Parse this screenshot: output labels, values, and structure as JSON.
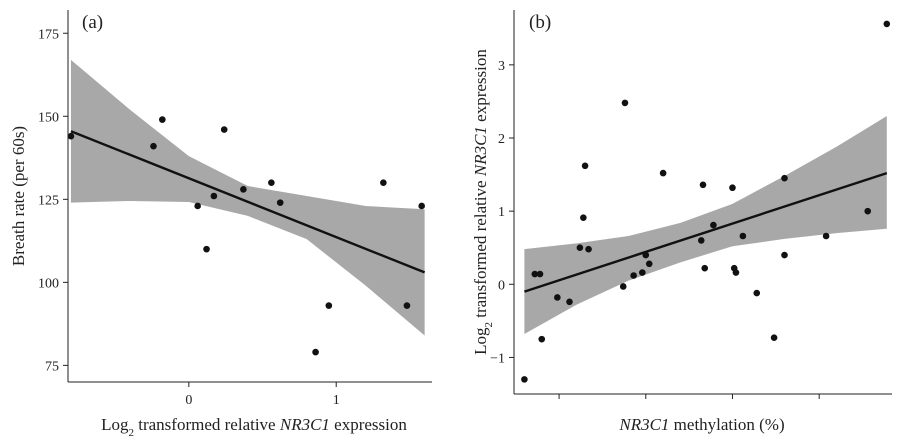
{
  "chart_data": [
    {
      "type": "scatter",
      "panel_label": "(a)",
      "xlabel_parts": [
        "Log",
        "2",
        " transformed relative ",
        "NR3C1",
        " expression"
      ],
      "ylabel": "Breath rate (per 60s)",
      "xlim": [
        -0.82,
        1.65
      ],
      "ylim": [
        70,
        182
      ],
      "x_ticks": [
        0,
        1
      ],
      "x_tick_labels": [
        "0",
        "1"
      ],
      "y_ticks": [
        75,
        100,
        125,
        150,
        175
      ],
      "y_tick_labels": [
        "75",
        "100",
        "125",
        "150",
        "175"
      ],
      "grid": false,
      "points": [
        {
          "x": -0.8,
          "y": 144
        },
        {
          "x": -0.24,
          "y": 141
        },
        {
          "x": -0.18,
          "y": 149
        },
        {
          "x": 0.06,
          "y": 123
        },
        {
          "x": 0.12,
          "y": 110
        },
        {
          "x": 0.17,
          "y": 126
        },
        {
          "x": 0.24,
          "y": 146
        },
        {
          "x": 0.37,
          "y": 128
        },
        {
          "x": 0.56,
          "y": 130
        },
        {
          "x": 0.62,
          "y": 124
        },
        {
          "x": 0.86,
          "y": 79
        },
        {
          "x": 0.95,
          "y": 93
        },
        {
          "x": 1.32,
          "y": 130
        },
        {
          "x": 1.48,
          "y": 93
        },
        {
          "x": 1.58,
          "y": 123
        }
      ],
      "fit_line": {
        "x": [
          -0.8,
          1.6
        ],
        "y": [
          145.5,
          103
        ]
      },
      "ci_band": {
        "x": [
          -0.8,
          -0.4,
          0.0,
          0.4,
          0.8,
          1.2,
          1.6
        ],
        "lower": [
          124,
          124.5,
          124.2,
          120,
          113,
          99,
          84
        ],
        "upper": [
          167,
          152,
          138,
          129,
          126,
          123,
          122
        ]
      },
      "colors": {
        "points": "#111111",
        "line": "#111111",
        "band": "#a8a8a8"
      }
    },
    {
      "type": "scatter",
      "panel_label": "(b)",
      "xlabel_parts": [
        "NR3C1",
        " methylation (%)"
      ],
      "ylabel_parts": [
        "Log",
        "2",
        " transformed relative ",
        "NR3C1",
        " expression"
      ],
      "xlim": [
        -0.3,
        10.6
      ],
      "ylim": [
        -1.5,
        3.75
      ],
      "x_ticks": [
        1,
        3.5,
        6,
        8.5
      ],
      "x_tick_labels": [
        "",
        "",
        "",
        ""
      ],
      "y_ticks": [
        -1,
        0,
        1,
        2,
        3
      ],
      "y_tick_labels": [
        "−1",
        "0",
        "1",
        "2",
        "3"
      ],
      "grid": false,
      "points": [
        {
          "x": 0.0,
          "y": -1.3
        },
        {
          "x": 0.3,
          "y": 0.14
        },
        {
          "x": 0.45,
          "y": 0.14
        },
        {
          "x": 0.5,
          "y": -0.75
        },
        {
          "x": 0.95,
          "y": -0.18
        },
        {
          "x": 1.3,
          "y": -0.24
        },
        {
          "x": 1.6,
          "y": 0.5
        },
        {
          "x": 1.7,
          "y": 0.91
        },
        {
          "x": 1.75,
          "y": 1.62
        },
        {
          "x": 1.85,
          "y": 0.48
        },
        {
          "x": 2.9,
          "y": 2.48
        },
        {
          "x": 2.85,
          "y": -0.03
        },
        {
          "x": 3.15,
          "y": 0.12
        },
        {
          "x": 3.4,
          "y": 0.16
        },
        {
          "x": 3.5,
          "y": 0.4
        },
        {
          "x": 3.6,
          "y": 0.28
        },
        {
          "x": 4.0,
          "y": 1.52
        },
        {
          "x": 5.1,
          "y": 0.6
        },
        {
          "x": 5.15,
          "y": 1.36
        },
        {
          "x": 5.2,
          "y": 0.22
        },
        {
          "x": 5.45,
          "y": 0.81
        },
        {
          "x": 6.0,
          "y": 1.32
        },
        {
          "x": 6.05,
          "y": 0.22
        },
        {
          "x": 6.1,
          "y": 0.16
        },
        {
          "x": 6.3,
          "y": 0.66
        },
        {
          "x": 6.7,
          "y": -0.12
        },
        {
          "x": 7.2,
          "y": -0.73
        },
        {
          "x": 7.5,
          "y": 1.45
        },
        {
          "x": 7.5,
          "y": 0.4
        },
        {
          "x": 8.7,
          "y": 0.66
        },
        {
          "x": 9.9,
          "y": 1.0
        },
        {
          "x": 10.45,
          "y": 3.56
        }
      ],
      "fit_line": {
        "x": [
          0.0,
          10.45
        ],
        "y": [
          -0.1,
          1.52
        ]
      },
      "ci_band": {
        "x": [
          0.0,
          1.5,
          3.0,
          4.5,
          6.0,
          7.5,
          9.0,
          10.45
        ],
        "lower": [
          -0.68,
          -0.28,
          0.05,
          0.3,
          0.52,
          0.62,
          0.7,
          0.76
        ],
        "upper": [
          0.48,
          0.56,
          0.66,
          0.84,
          1.1,
          1.48,
          1.88,
          2.3
        ]
      },
      "colors": {
        "points": "#111111",
        "line": "#111111",
        "band": "#a8a8a8"
      }
    }
  ]
}
